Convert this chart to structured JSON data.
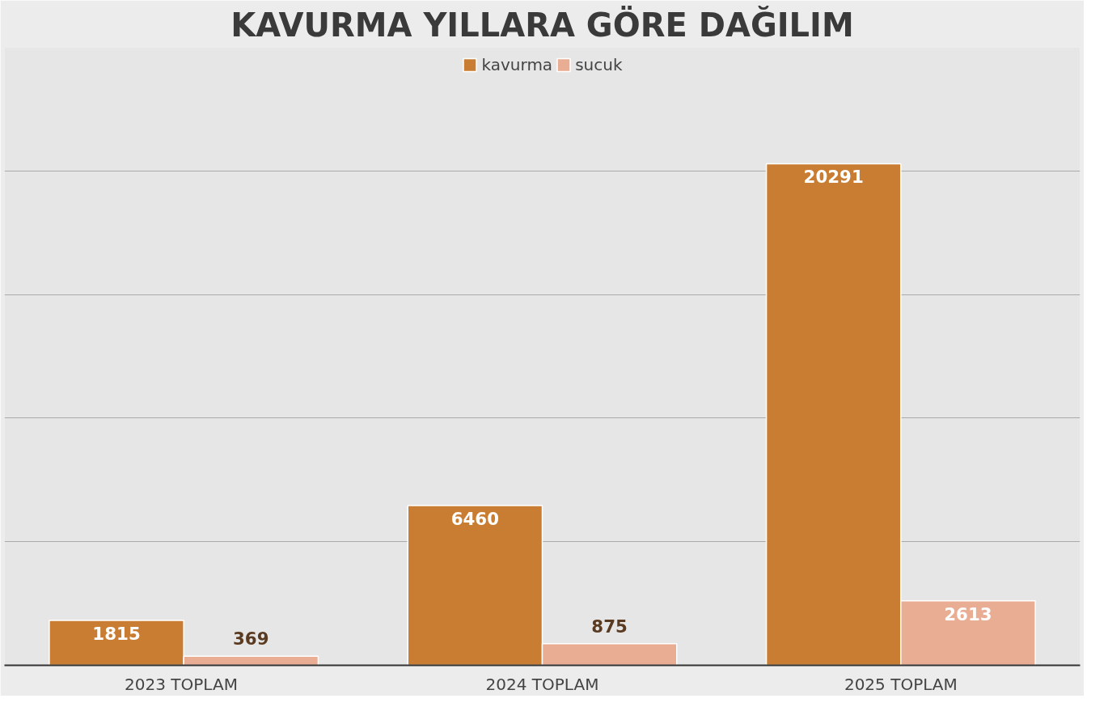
{
  "chart_data": {
    "type": "bar",
    "title": "KAVURMA YILLARA GÖRE DAĞILIM",
    "categories": [
      "2023  TOPLAM",
      "2024 TOPLAM",
      "2025 TOPLAM"
    ],
    "series": [
      {
        "name": "kavurma",
        "color": "#c97d32",
        "values": [
          1815,
          6460,
          20291
        ]
      },
      {
        "name": "sucuk",
        "color": "#e8ad92",
        "values": [
          369,
          875,
          2613
        ]
      }
    ],
    "ylim": [
      0,
      25000
    ],
    "yticks": [
      {
        "value": 0,
        "label": null
      },
      {
        "value": 5000,
        "label": null
      },
      {
        "value": 10000,
        "label": null
      },
      {
        "value": 15000,
        "label": null
      },
      {
        "value": 20000,
        "label": null
      },
      {
        "value": 25000,
        "label": null
      }
    ],
    "tick_labels": "x",
    "grid": "y",
    "legend": "top",
    "data_labels": true
  }
}
